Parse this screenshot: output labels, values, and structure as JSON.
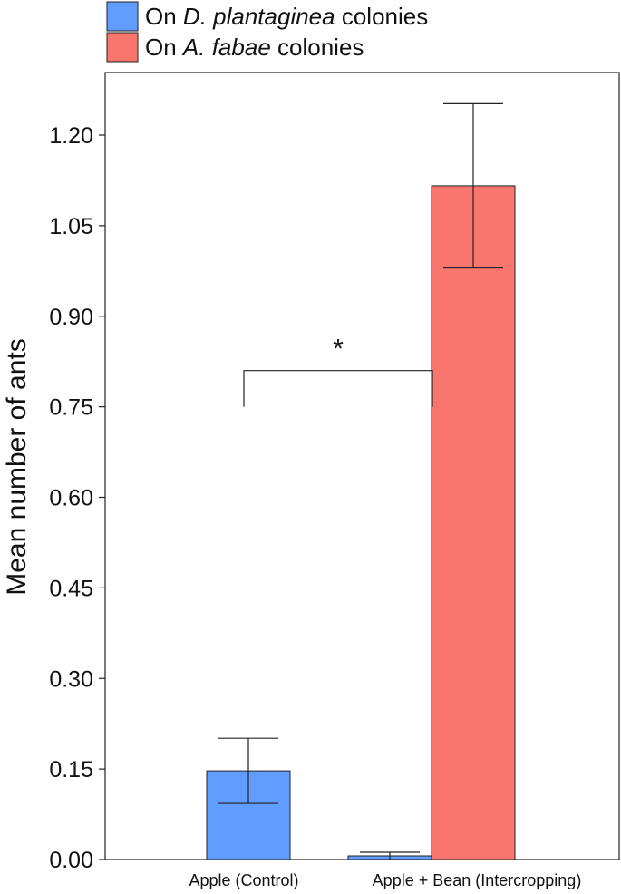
{
  "chart_data": {
    "type": "bar",
    "categories": [
      "Apple (Control)",
      "Apple + Bean (Intercropping)"
    ],
    "series": [
      {
        "name_parts": [
          "On ",
          "D. plantaginea",
          " colonies"
        ],
        "color": "#619cff",
        "values": [
          0.147,
          0.006
        ],
        "errors": [
          [
            0.093,
            0.201
          ],
          [
            0.0,
            0.012
          ]
        ]
      },
      {
        "name_parts": [
          "On ",
          "A. fabae",
          " colonies"
        ],
        "color": "#f8766d",
        "values": [
          null,
          1.116
        ],
        "errors": [
          null,
          [
            0.98,
            1.252
          ]
        ]
      }
    ],
    "ylabel": "Mean number of ants",
    "ylim": [
      0,
      1.2
    ],
    "yticks": [
      "0.00",
      "0.15",
      "0.30",
      "0.45",
      "0.60",
      "0.75",
      "0.90",
      "1.05",
      "1.20"
    ],
    "significance": {
      "label": "*",
      "between": [
        "Apple (Control)",
        "Apple + Bean (Intercropping)"
      ],
      "series": 0
    },
    "legend_position": "top-left"
  }
}
